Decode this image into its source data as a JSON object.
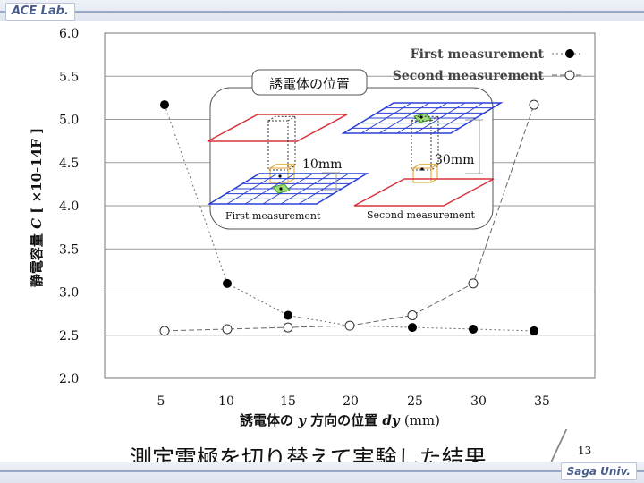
{
  "header": {
    "logo_text": "ACE Lab."
  },
  "footer": {
    "logo_text": "Saga Univ.",
    "page_number": "13"
  },
  "slide": {
    "title": "測定電極を切り替えて実験した結果"
  },
  "chart_data": {
    "type": "line",
    "x": [
      5,
      10,
      15,
      20,
      25,
      30,
      35
    ],
    "x_ticks": [
      "5",
      "10",
      "15",
      "20",
      "25",
      "30",
      "35"
    ],
    "y_ticks": [
      "2.0",
      "2.5",
      "3.0",
      "3.5",
      "4.0",
      "4.5",
      "5.0",
      "5.5",
      "6.0"
    ],
    "ylim": [
      2.0,
      6.0
    ],
    "grid": true,
    "legend_position": "top-right",
    "ylabel": {
      "prefix": "静電容量",
      "symbol": "C",
      "unit": "[ ×10-14F ]"
    },
    "xlabel": {
      "prefix": "誘電体の",
      "axis": "y",
      "suffix": "方向の位置",
      "var": "dy",
      "unit": "(mm)"
    },
    "series": [
      {
        "name": "First measurement",
        "marker": "filled-circle",
        "color": "#000000",
        "values": [
          5.17,
          3.1,
          2.73,
          2.61,
          2.59,
          2.57,
          2.55
        ]
      },
      {
        "name": "Second measurement",
        "marker": "open-circle",
        "color": "#000000",
        "values": [
          2.55,
          2.57,
          2.59,
          2.61,
          2.73,
          3.1,
          5.17
        ]
      }
    ],
    "inset": {
      "title": "誘電体の位置",
      "left_caption": "First measurement",
      "right_caption": "Second measurement",
      "left_gap_label": "10mm",
      "right_gap_label": "30mm"
    }
  }
}
